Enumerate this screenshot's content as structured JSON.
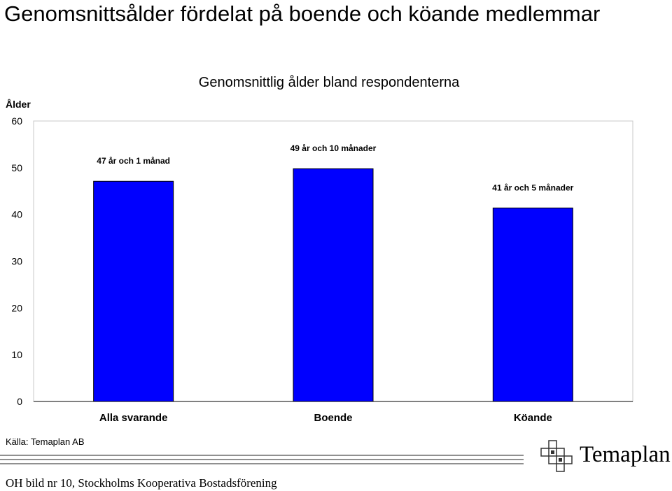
{
  "page": {
    "title": "Genomsnittsålder fördelat på boende och köande medlemmar",
    "source": "Källa: Temaplan AB",
    "footer": "OH bild nr 10, Stockholms Kooperativa Bostadsförening",
    "logo_text": "Temaplan"
  },
  "chart_data": {
    "type": "bar",
    "title": "Genomsnittlig ålder bland respondenterna",
    "ylabel": "Ålder",
    "xlabel": "",
    "categories": [
      "Alla svarande",
      "Boende",
      "Köande"
    ],
    "values": [
      47.1,
      49.8,
      41.4
    ],
    "data_labels": [
      "47 år och 1 månad",
      "49 år och 10 månader",
      "41 år och 5 månader"
    ],
    "ylim": [
      0,
      60
    ],
    "yticks": [
      0,
      10,
      20,
      30,
      40,
      50,
      60
    ],
    "grid": false,
    "bar_color": "#0000ff",
    "bar_outline": "#000000"
  }
}
